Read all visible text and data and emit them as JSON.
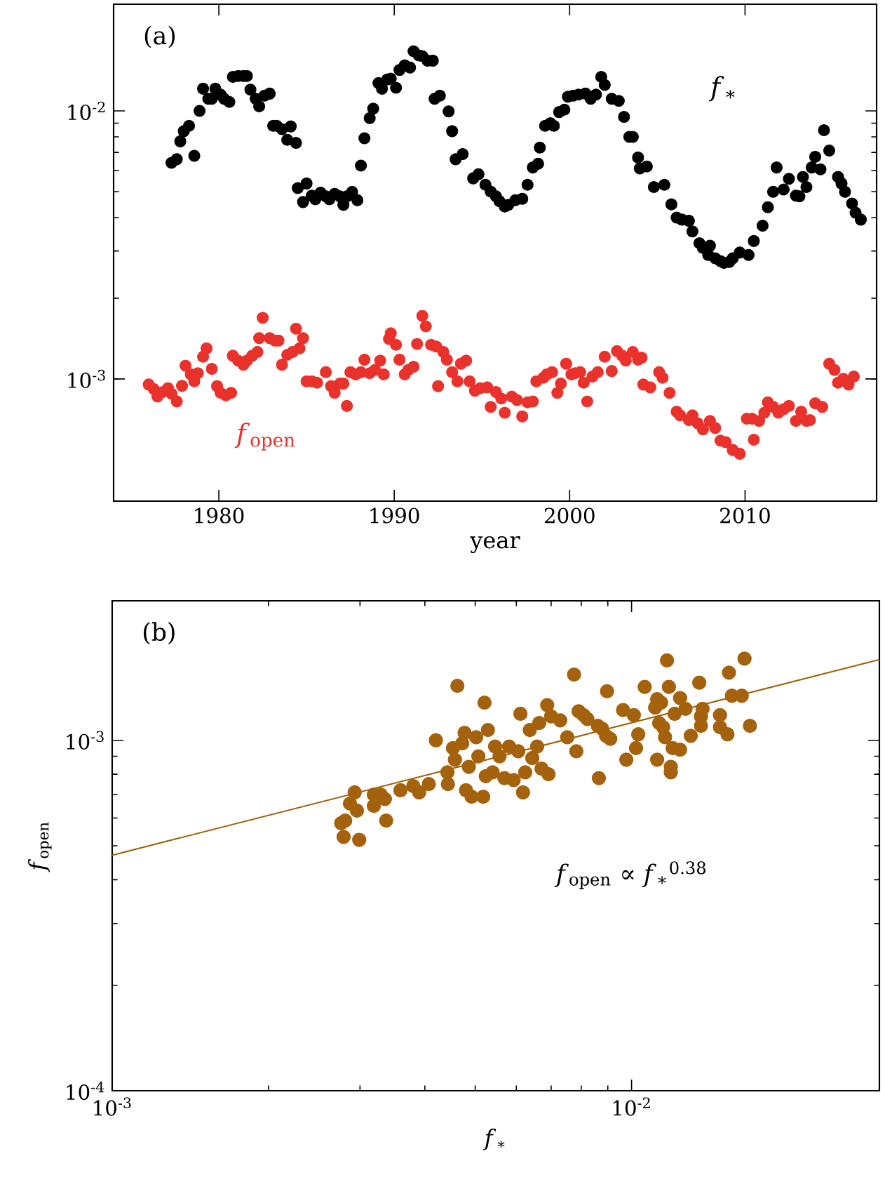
{
  "chart_data": [
    {
      "type": "scatter",
      "xlabel": "year",
      "log": "y",
      "marker": "circle",
      "xlim": [
        1974,
        2017.5
      ],
      "xticks": [
        1980,
        1990,
        2000,
        2010
      ],
      "ylim": [
        0.00035,
        0.025
      ],
      "yticks": [
        {
          "value": 0.001,
          "label": "10$^{-3}$"
        },
        {
          "value": 0.01,
          "label": "10$^{-2}$"
        }
      ],
      "annotations": [
        "(a)"
      ],
      "series": [
        {
          "name": "*f*$_{∗}$",
          "color": "#000000",
          "x": [
            1977.3,
            1977.6,
            1977.8,
            1978.0,
            1978.3,
            1978.6,
            1978.9,
            1979.1,
            1979.4,
            1979.6,
            1979.8,
            1980.1,
            1980.3,
            1980.6,
            1980.8,
            1981.1,
            1981.4,
            1981.6,
            1981.8,
            1982.1,
            1982.3,
            1982.6,
            1982.9,
            1983.1,
            1983.3,
            1983.6,
            1983.9,
            1984.1,
            1984.4,
            1984.5,
            1984.8,
            1985.0,
            1985.3,
            1985.5,
            1985.8,
            1986.1,
            1986.3,
            1986.6,
            1986.9,
            1987.1,
            1987.3,
            1987.6,
            1987.9,
            1988.1,
            1988.3,
            1988.6,
            1988.8,
            1989.1,
            1989.3,
            1989.6,
            1989.8,
            1990.1,
            1990.3,
            1990.6,
            1990.9,
            1991.1,
            1991.4,
            1991.6,
            1991.9,
            1992.2,
            1992.3,
            1992.6,
            1993.1,
            1993.3,
            1993.5,
            1993.9,
            1994.5,
            1994.8,
            1995.2,
            1995.5,
            1995.8,
            1996.0,
            1996.3,
            1996.5,
            1996.9,
            1997.3,
            1997.6,
            1997.9,
            1998.2,
            1998.3,
            1998.6,
            1998.9,
            1999.1,
            1999.4,
            1999.7,
            1999.9,
            2000.2,
            2000.5,
            2000.9,
            2001.2,
            2001.5,
            2001.8,
            2002.0,
            2002.4,
            2002.8,
            2003.1,
            2003.4,
            2003.6,
            2003.9,
            2004.0,
            2004.4,
            2004.8,
            2005.4,
            2005.8,
            2006.1,
            2006.4,
            2006.8,
            2007.0,
            2007.4,
            2007.6,
            2007.9,
            2008.0,
            2008.3,
            2008.6,
            2008.8,
            2009.1,
            2009.3,
            2009.7,
            2010.2,
            2010.5,
            2011.0,
            2011.3,
            2011.6,
            2011.8,
            2012.2,
            2012.5,
            2012.9,
            2013.1,
            2013.3,
            2013.5,
            2013.8,
            2014.0,
            2014.3,
            2014.5,
            2014.8,
            2015.3,
            2015.5,
            2015.7,
            2016.1,
            2016.3,
            2016.6
          ],
          "values": [
            0.0064,
            0.0066,
            0.0077,
            0.0084,
            0.0088,
            0.0068,
            0.01,
            0.0121,
            0.0111,
            0.0111,
            0.0121,
            0.0115,
            0.0111,
            0.0108,
            0.0134,
            0.0135,
            0.0135,
            0.0135,
            0.012,
            0.0111,
            0.0104,
            0.0114,
            0.0116,
            0.0088,
            0.0088,
            0.00855,
            0.0078,
            0.00875,
            0.0076,
            0.00515,
            0.00457,
            0.00536,
            0.00483,
            0.00468,
            0.00495,
            0.0048,
            0.00468,
            0.0049,
            0.0048,
            0.00446,
            0.0048,
            0.00498,
            0.00464,
            0.00625,
            0.0079,
            0.0094,
            0.0102,
            0.0127,
            0.0121,
            0.0131,
            0.0132,
            0.0122,
            0.0142,
            0.0148,
            0.0145,
            0.0167,
            0.0161,
            0.016,
            0.0154,
            0.0154,
            0.0111,
            0.0114,
            0.00995,
            0.0084,
            0.0066,
            0.0069,
            0.0056,
            0.0058,
            0.0053,
            0.005,
            0.0048,
            0.0046,
            0.0044,
            0.00446,
            0.00464,
            0.0047,
            0.0053,
            0.00615,
            0.00635,
            0.0073,
            0.0088,
            0.009,
            0.0088,
            0.0099,
            0.0101,
            0.0113,
            0.0114,
            0.0115,
            0.0116,
            0.0111,
            0.0115,
            0.0134,
            0.0125,
            0.0111,
            0.0109,
            0.0095,
            0.008,
            0.008,
            0.0067,
            0.0061,
            0.0062,
            0.0052,
            0.0053,
            0.00448,
            0.004,
            0.00393,
            0.00389,
            0.00355,
            0.00321,
            0.00308,
            0.0029,
            0.00314,
            0.00282,
            0.00275,
            0.00271,
            0.00273,
            0.00282,
            0.00296,
            0.0029,
            0.00327,
            0.00373,
            0.00437,
            0.00499,
            0.00615,
            0.00509,
            0.00558,
            0.00483,
            0.0048,
            0.00567,
            0.0052,
            0.00615,
            0.00674,
            0.00605,
            0.00847,
            0.00711,
            0.00567,
            0.00536,
            0.00499,
            0.00451,
            0.00417,
            0.00393
          ]
        },
        {
          "name": "*f*$_{open}$",
          "color": "#e8322b",
          "x": [
            1976.0,
            1976.3,
            1976.5,
            1976.8,
            1977.1,
            1977.3,
            1977.6,
            1977.9,
            1978.1,
            1978.4,
            1978.6,
            1978.8,
            1979.1,
            1979.3,
            1979.6,
            1979.9,
            1980.1,
            1980.4,
            1980.7,
            1980.8,
            1981.1,
            1981.4,
            1981.6,
            1981.9,
            1982.2,
            1982.3,
            1982.5,
            1982.9,
            1983.2,
            1983.4,
            1983.6,
            1983.9,
            1984.2,
            1984.4,
            1984.6,
            1984.8,
            1985.0,
            1985.3,
            1985.6,
            1986.1,
            1986.4,
            1986.6,
            1986.9,
            1987.1,
            1987.3,
            1987.5,
            1987.8,
            1988.1,
            1988.3,
            1988.6,
            1988.9,
            1989.2,
            1989.4,
            1989.7,
            1989.8,
            1990.1,
            1990.3,
            1990.6,
            1990.8,
            1991.1,
            1991.3,
            1991.6,
            1991.8,
            1992.1,
            1992.4,
            1992.5,
            1992.8,
            1993.0,
            1993.3,
            1993.6,
            1993.8,
            1994.1,
            1994.3,
            1994.6,
            1994.9,
            1995.3,
            1995.5,
            1995.8,
            1996.1,
            1996.3,
            1996.7,
            1997.0,
            1997.3,
            1997.6,
            1997.9,
            1998.1,
            1998.5,
            1998.7,
            1999.0,
            1999.3,
            1999.5,
            1999.8,
            2000.1,
            2000.3,
            2000.6,
            2000.8,
            2001.0,
            2001.3,
            2001.6,
            2002.0,
            2002.4,
            2002.7,
            2003.0,
            2003.2,
            2003.6,
            2003.9,
            2004.1,
            2004.2,
            2004.6,
            2005.1,
            2005.3,
            2005.7,
            2006.1,
            2006.3,
            2006.8,
            2007.0,
            2007.3,
            2007.6,
            2008.0,
            2008.3,
            2008.6,
            2008.9,
            2009.3,
            2009.7,
            2010.1,
            2010.4,
            2010.5,
            2010.8,
            2011.1,
            2011.3,
            2011.6,
            2011.9,
            2012.2,
            2012.5,
            2012.9,
            2013.2,
            2013.5,
            2013.7,
            2014.0,
            2014.4,
            2014.8,
            2015.1,
            2015.3,
            2015.6,
            2015.9,
            2016.2
          ],
          "values": [
            0.000953,
            0.000916,
            0.000859,
            0.000894,
            0.000923,
            0.00088,
            0.000824,
            0.000942,
            0.00112,
            0.00104,
            0.00098,
            0.00105,
            0.00121,
            0.0013,
            0.00109,
            0.00094,
            0.000887,
            0.000869,
            0.000887,
            0.00122,
            0.00117,
            0.00113,
            0.00117,
            0.00122,
            0.00126,
            0.00142,
            0.00169,
            0.00142,
            0.00139,
            0.00139,
            0.00113,
            0.00123,
            0.00126,
            0.00154,
            0.0013,
            0.00142,
            0.00098,
            0.00098,
            0.000968,
            0.00106,
            0.00094,
            0.000887,
            0.000961,
            0.000961,
            0.000793,
            0.00106,
            0.00104,
            0.00106,
            0.00118,
            0.00105,
            0.00108,
            0.00117,
            0.00104,
            0.00141,
            0.00148,
            0.00134,
            0.00118,
            0.00104,
            0.00108,
            0.00111,
            0.00135,
            0.00172,
            0.00157,
            0.00134,
            0.00132,
            0.00094,
            0.00126,
            0.00118,
            0.00106,
            0.00098,
            0.00114,
            0.00117,
            0.00098,
            0.000904,
            0.000923,
            0.00093,
            0.000786,
            0.000894,
            0.000845,
            0.000748,
            0.000859,
            0.000834,
            0.000725,
            0.000818,
            0.000824,
            0.00098,
            0.00101,
            0.00104,
            0.00106,
            0.000887,
            0.000961,
            0.00114,
            0.00104,
            0.00105,
            0.00106,
            0.000968,
            0.000824,
            0.00102,
            0.00106,
            0.00121,
            0.00107,
            0.00127,
            0.00122,
            0.00117,
            0.00126,
            0.00118,
            0.0012,
            0.000953,
            0.00093,
            0.00106,
            0.00101,
            0.000887,
            0.000755,
            0.000731,
            0.000702,
            0.000731,
            0.000683,
            0.000648,
            0.000697,
            0.000656,
            0.000589,
            0.000581,
            0.000543,
            0.000526,
            0.000711,
            0.000711,
            0.000593,
            0.000697,
            0.000748,
            0.000818,
            0.000786,
            0.000748,
            0.000771,
            0.000793,
            0.000697,
            0.000755,
            0.000697,
            0.000702,
            0.000811,
            0.000786,
            0.00114,
            0.00108,
            0.000968,
            0.001,
            0.000953,
            0.00102
          ]
        }
      ]
    },
    {
      "type": "scatter",
      "xlabel": "*f*$_{∗}$",
      "ylabel": "*f*$_{open}$",
      "log": "xy",
      "marker": "circle",
      "xlim": [
        0.001,
        0.03
      ],
      "xticks": [
        {
          "value": 0.001,
          "label": "10$^{-3}$"
        },
        {
          "value": 0.01,
          "label": "10$^{-2}$"
        }
      ],
      "ylim": [
        0.0001,
        0.0025
      ],
      "yticks": [
        {
          "value": 0.0001,
          "label": "10$^{-4}$"
        },
        {
          "value": 0.001,
          "label": "10$^{-3}$"
        }
      ],
      "annotations": [
        "(b)",
        "*f*$_{open}$ ∝ *f*$_{∗}$$^{0.38}$"
      ],
      "series": [
        {
          "color": "#a5620d",
          "x": [
            0.00276,
            0.00281,
            0.00279,
            0.00299,
            0.00293,
            0.00287,
            0.00296,
            0.00319,
            0.00319,
            0.00329,
            0.00335,
            0.00337,
            0.00359,
            0.0038,
            0.0039,
            0.00407,
            0.0042,
            0.00443,
            0.00442,
            0.00453,
            0.00462,
            0.00457,
            0.00472,
            0.00477,
            0.0048,
            0.00486,
            0.00492,
            0.00502,
            0.00507,
            0.00518,
            0.00521,
            0.00524,
            0.00529,
            0.0054,
            0.00546,
            0.00557,
            0.00569,
            0.00581,
            0.00593,
            0.00605,
            0.00611,
            0.00618,
            0.00624,
            0.00637,
            0.00644,
            0.00658,
            0.00664,
            0.00671,
            0.00688,
            0.00692,
            0.007,
            0.00729,
            0.00752,
            0.00775,
            0.00783,
            0.00791,
            0.00808,
            0.00822,
            0.00861,
            0.00865,
            0.00877,
            0.00897,
            0.00893,
            0.0091,
            0.00963,
            0.00977,
            0.0101,
            0.0103,
            0.0102,
            0.0106,
            0.0111,
            0.0112,
            0.0114,
            0.0115,
            0.0112,
            0.0113,
            0.0116,
            0.0117,
            0.0118,
            0.0119,
            0.0119,
            0.012,
            0.0121,
            0.0124,
            0.0124,
            0.0127,
            0.013,
            0.0135,
            0.0136,
            0.0137,
            0.0136,
            0.0148,
            0.0148,
            0.0153,
            0.0154,
            0.0156,
            0.0163,
            0.0165,
            0.0169
          ],
          "values": [
            0.00058,
            0.00059,
            0.00053,
            0.00052,
            0.00071,
            0.00066,
            0.00063,
            0.0007,
            0.00065,
            0.0007,
            0.00068,
            0.00059,
            0.00072,
            0.00074,
            0.00071,
            0.00075,
            0.001,
            0.00075,
            0.00081,
            0.00095,
            0.00143,
            0.00088,
            0.00098,
            0.00105,
            0.00072,
            0.00084,
            0.00069,
            0.00102,
            0.0009,
            0.00069,
            0.00128,
            0.00079,
            0.00107,
            0.00081,
            0.00096,
            0.0009,
            0.00078,
            0.00096,
            0.00077,
            0.00093,
            0.00119,
            0.00071,
            0.00081,
            0.00107,
            0.00089,
            0.00096,
            0.00112,
            0.00083,
            0.00126,
            0.0008,
            0.00117,
            0.00114,
            0.00102,
            0.00154,
            0.00093,
            0.00121,
            0.00118,
            0.00115,
            0.0011,
            0.00078,
            0.00108,
            0.00138,
            0.00103,
            0.00101,
            0.00122,
            0.00088,
            0.00118,
            0.00104,
            0.00095,
            0.00142,
            0.00124,
            0.00131,
            0.00128,
            0.00109,
            0.00088,
            0.00112,
            0.00102,
            0.00169,
            0.00142,
            0.00084,
            0.00081,
            0.00095,
            0.00119,
            0.00094,
            0.00132,
            0.00123,
            0.00103,
            0.00146,
            0.00117,
            0.00123,
            0.0011,
            0.00118,
            0.00109,
            0.00104,
            0.00156,
            0.00134,
            0.00134,
            0.00171,
            0.0011
          ]
        },
        {
          "type": "line",
          "marker": "none",
          "color": "#a0620a",
          "x": [
            0.001,
            0.03
          ],
          "values": [
            0.00047,
            0.0017
          ]
        }
      ]
    }
  ]
}
